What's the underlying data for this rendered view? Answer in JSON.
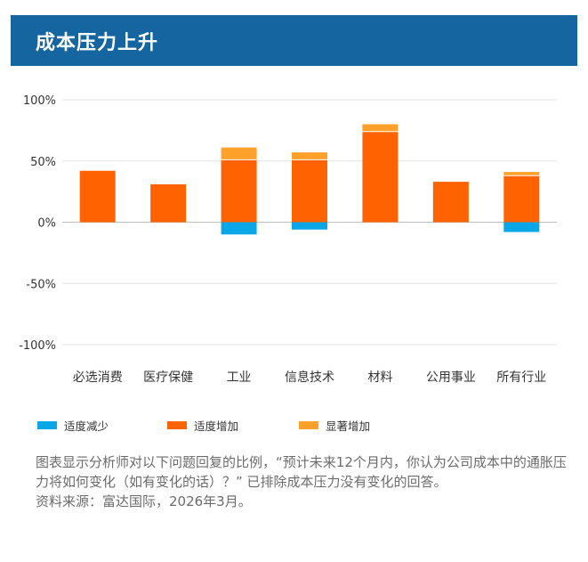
{
  "header": {
    "title": "成本压力上升"
  },
  "colors": {
    "moderate_decrease": "#0aa7e8",
    "moderate_increase": "#ff6200",
    "significant_increase": "#ffa02a",
    "header_bg": "#1565a0"
  },
  "chart_data": {
    "type": "bar",
    "stacked": true,
    "categories": [
      "必选消费",
      "医疗保健",
      "工业",
      "信息技术",
      "材料",
      "公用事业",
      "所有行业"
    ],
    "series": [
      {
        "name": "适度减少",
        "values": [
          0,
          0,
          -10,
          -6,
          0,
          0,
          -8
        ]
      },
      {
        "name": "适度增加",
        "values": [
          42,
          31,
          51,
          51,
          74,
          33,
          38
        ]
      },
      {
        "name": "显著增加",
        "values": [
          0,
          0,
          10,
          6,
          6,
          0,
          3
        ]
      }
    ],
    "yticks": [
      "100%",
      "50%",
      "0%",
      "-50%",
      "-100%"
    ],
    "ylim": [
      -100,
      100
    ],
    "grid": true,
    "legend_position": "bottom"
  },
  "legend": [
    {
      "label": "适度减少",
      "color": "#0aa7e8"
    },
    {
      "label": "适度增加",
      "color": "#ff6200"
    },
    {
      "label": "显著增加",
      "color": "#ffa02a"
    }
  ],
  "note": {
    "line1": "图表显示分析师对以下问题回复的比例，“预计未来12个月内，你认为公司成本中的通胀压力将如何变化（如有变化的话）？” 已排除成本压力没有变化的回答。",
    "source": "资料来源：富达国际，2026年3月。"
  }
}
